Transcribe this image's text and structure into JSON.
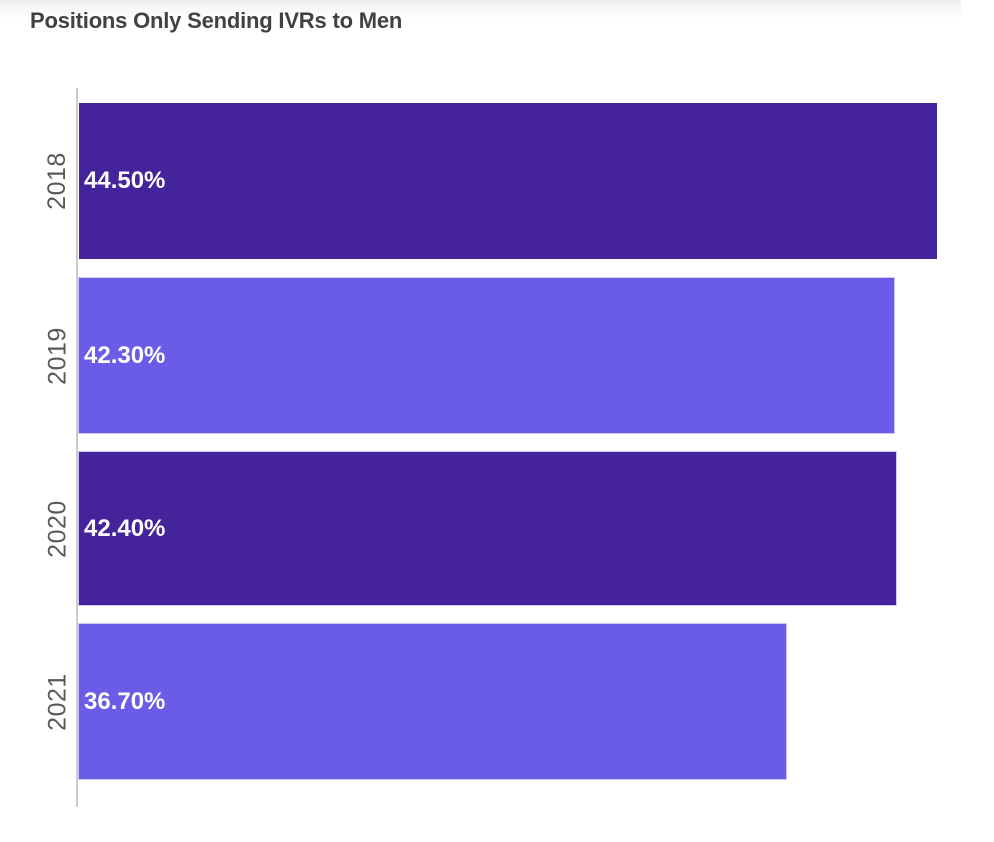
{
  "chart": {
    "title": "Positions Only Sending IVRs to Men",
    "bars": [
      {
        "year": "2018",
        "label": "44.50%",
        "value": 44.5,
        "color": "#45239B"
      },
      {
        "year": "2019",
        "label": "42.30%",
        "value": 42.3,
        "color": "#6B5CE8"
      },
      {
        "year": "2020",
        "label": "42.40%",
        "value": 42.4,
        "color": "#45239B"
      },
      {
        "year": "2021",
        "label": "36.70%",
        "value": 36.7,
        "color": "#6B5CE8"
      }
    ],
    "colors": {
      "dark_bar": "#45239B",
      "light_bar": "#6B5CE8",
      "axis_line": "#CCCCCC",
      "title_text": "#414042",
      "tick_text": "#58595B",
      "value_text": "#FFFFFF"
    }
  },
  "chart_data": {
    "type": "bar",
    "orientation": "horizontal",
    "title": "Positions Only Sending IVRs to Men",
    "categories": [
      "2018",
      "2019",
      "2020",
      "2021"
    ],
    "values": [
      44.5,
      42.3,
      42.4,
      36.7
    ],
    "value_labels": [
      "44.50%",
      "42.30%",
      "42.40%",
      "36.70%"
    ],
    "unit": "%",
    "xlabel": "",
    "ylabel": "",
    "xlim": [
      0,
      45.7
    ],
    "bar_colors": [
      "#45239B",
      "#6B5CE8",
      "#45239B",
      "#6B5CE8"
    ],
    "grid": false,
    "legend": false,
    "value_label_position": "inside-left",
    "category_label_rotation": -90
  }
}
